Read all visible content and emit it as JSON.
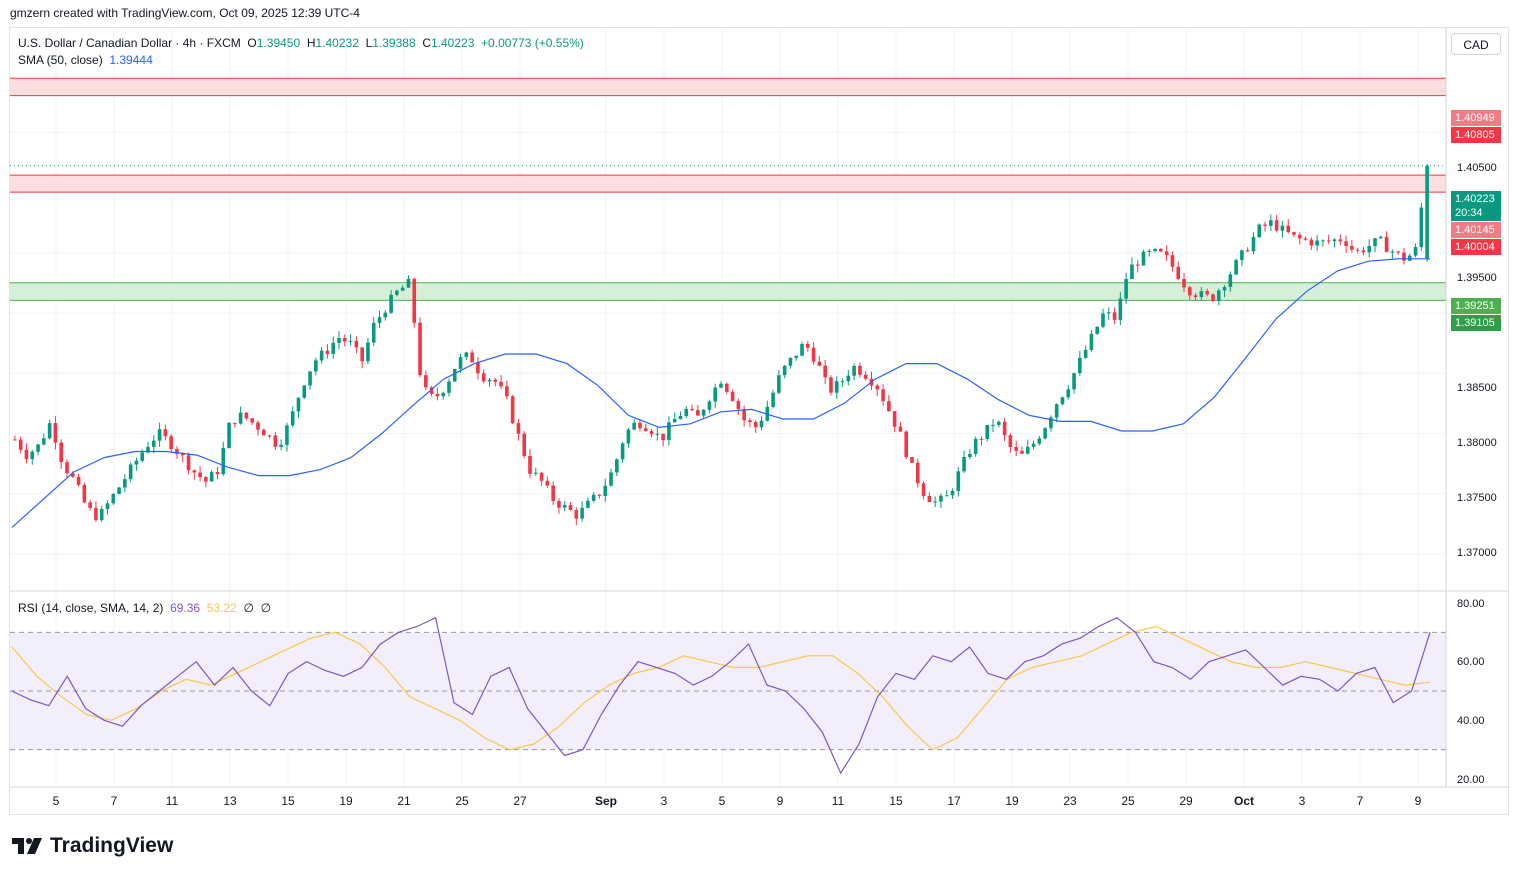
{
  "header": {
    "credit": "gmzern created with TradingView.com, Oct 09, 2025 12:39 UTC-4"
  },
  "legend": {
    "symbol": "U.S. Dollar / Canadian Dollar · 4h · FXCM",
    "o_label": "O",
    "o": "1.39450",
    "h_label": "H",
    "h": "1.40232",
    "l_label": "L",
    "l": "1.39388",
    "c_label": "C",
    "c": "1.40223",
    "change": "+0.00773 (+0.55%)",
    "sma_label": "SMA (50, close)",
    "sma_value": "1.39444",
    "rsi_label": "RSI (14, close, SMA, 14, 2)",
    "rsi_value": "69.36",
    "rsi_sma": "53.22",
    "rsi_extra1": "∅",
    "rsi_extra2": "∅"
  },
  "axis": {
    "currency": "CAD",
    "price_ticks": [
      "1.40500",
      "1.39500",
      "1.38500",
      "1.38000",
      "1.37500",
      "1.37000"
    ],
    "rsi_ticks": [
      "80.00",
      "60.00",
      "40.00",
      "20.00"
    ],
    "dates": [
      "5",
      "7",
      "11",
      "13",
      "15",
      "19",
      "21",
      "25",
      "27",
      "Sep",
      "3",
      "5",
      "9",
      "11",
      "15",
      "17",
      "19",
      "23",
      "25",
      "29",
      "Oct",
      "3",
      "7",
      "9"
    ]
  },
  "tags": {
    "res_top_high": "1.40949",
    "res_top_low": "1.40805",
    "last_price": "1.40223",
    "countdown": "20:34",
    "res_mid_high": "1.40145",
    "res_mid_low": "1.40004",
    "sup_high": "1.39251",
    "sup_low": "1.39105"
  },
  "colors": {
    "up": "#089981",
    "down": "#f23645",
    "sma": "#2962ff",
    "rsi": "#7e57c2",
    "rsi_sma": "#f7c948",
    "resistance_fill": "#fddde0",
    "resistance_line": "#f23645",
    "support_fill": "#d6f0d8",
    "support_line": "#4caf50"
  },
  "brand": {
    "name": "TradingView"
  },
  "chart_data": {
    "type": "candlestick",
    "title": "U.S. Dollar / Canadian Dollar · 4h · FXCM",
    "y_range": [
      1.367,
      1.4135
    ],
    "x_categories": [
      "5",
      "7",
      "11",
      "13",
      "15",
      "19",
      "21",
      "25",
      "27",
      "Sep",
      "3",
      "5",
      "9",
      "11",
      "15",
      "17",
      "19",
      "23",
      "25",
      "29",
      "Oct",
      "3",
      "7",
      "9"
    ],
    "close_path": [
      1.3795,
      1.3782,
      1.379,
      1.381,
      1.3775,
      1.376,
      1.3738,
      1.373,
      1.3745,
      1.376,
      1.3775,
      1.379,
      1.38,
      1.3792,
      1.378,
      1.3768,
      1.376,
      1.377,
      1.381,
      1.3815,
      1.3808,
      1.38,
      1.379,
      1.381,
      1.384,
      1.386,
      1.3868,
      1.388,
      1.3875,
      1.386,
      1.389,
      1.3905,
      1.3918,
      1.3925,
      1.3838,
      1.3828,
      1.384,
      1.386,
      1.3865,
      1.3848,
      1.3845,
      1.383,
      1.38,
      1.377,
      1.376,
      1.3745,
      1.3738,
      1.3732,
      1.3742,
      1.3752,
      1.377,
      1.38,
      1.381,
      1.3805,
      1.3795,
      1.381,
      1.382,
      1.3812,
      1.383,
      1.3845,
      1.383,
      1.381,
      1.3805,
      1.3825,
      1.385,
      1.3863,
      1.3875,
      1.386,
      1.3835,
      1.3842,
      1.3856,
      1.385,
      1.384,
      1.382,
      1.3798,
      1.377,
      1.375,
      1.3742,
      1.3748,
      1.377,
      1.379,
      1.38,
      1.3812,
      1.379,
      1.378,
      1.379,
      1.3805,
      1.3825,
      1.384,
      1.386,
      1.388,
      1.39,
      1.3895,
      1.3935,
      1.3945,
      1.395,
      1.3948,
      1.3935,
      1.392,
      1.3915,
      1.3912,
      1.3925,
      1.394,
      1.3955,
      1.397,
      1.3975,
      1.3968,
      1.3962,
      1.396,
      1.3958,
      1.396,
      1.3962,
      1.395,
      1.3955,
      1.396,
      1.3952,
      1.3945,
      1.395,
      1.4022
    ],
    "sma_50_path": [
      1.3722,
      1.3745,
      1.3768,
      1.378,
      1.3785,
      1.3785,
      1.3782,
      1.3772,
      1.3765,
      1.3765,
      1.377,
      1.378,
      1.38,
      1.3823,
      1.3845,
      1.3858,
      1.3866,
      1.3866,
      1.3858,
      1.384,
      1.3815,
      1.3805,
      1.3808,
      1.3818,
      1.382,
      1.3812,
      1.3812,
      1.3825,
      1.3845,
      1.3858,
      1.3858,
      1.3845,
      1.3828,
      1.3815,
      1.381,
      1.381,
      1.3802,
      1.3802,
      1.3808,
      1.383,
      1.3862,
      1.3895,
      1.3918,
      1.3935,
      1.3943,
      1.3945,
      1.3945
    ],
    "rsi": [
      50,
      47,
      45,
      55,
      44,
      40,
      38,
      45,
      50,
      55,
      60,
      52,
      58,
      50,
      45,
      56,
      60,
      57,
      55,
      58,
      66,
      70,
      72,
      75,
      46,
      42,
      55,
      58,
      44,
      36,
      28,
      30,
      42,
      52,
      60,
      58,
      56,
      52,
      55,
      60,
      66,
      52,
      50,
      44,
      36,
      22,
      32,
      48,
      56,
      54,
      62,
      60,
      65,
      56,
      54,
      60,
      62,
      66,
      68,
      72,
      75,
      70,
      60,
      58,
      54,
      60,
      62,
      64,
      58,
      52,
      55,
      54,
      50,
      56,
      58,
      46,
      50,
      70
    ],
    "rsi_sma": [
      65,
      55,
      48,
      42,
      40,
      44,
      50,
      54,
      52,
      56,
      60,
      64,
      68,
      70,
      66,
      58,
      48,
      44,
      40,
      34,
      30,
      32,
      38,
      46,
      52,
      56,
      58,
      62,
      60,
      58,
      58,
      60,
      62,
      62,
      56,
      48,
      38,
      30,
      34,
      44,
      54,
      58,
      60,
      62,
      66,
      70,
      72,
      68,
      64,
      60,
      58,
      58,
      60,
      58,
      56,
      54,
      52,
      53
    ]
  }
}
